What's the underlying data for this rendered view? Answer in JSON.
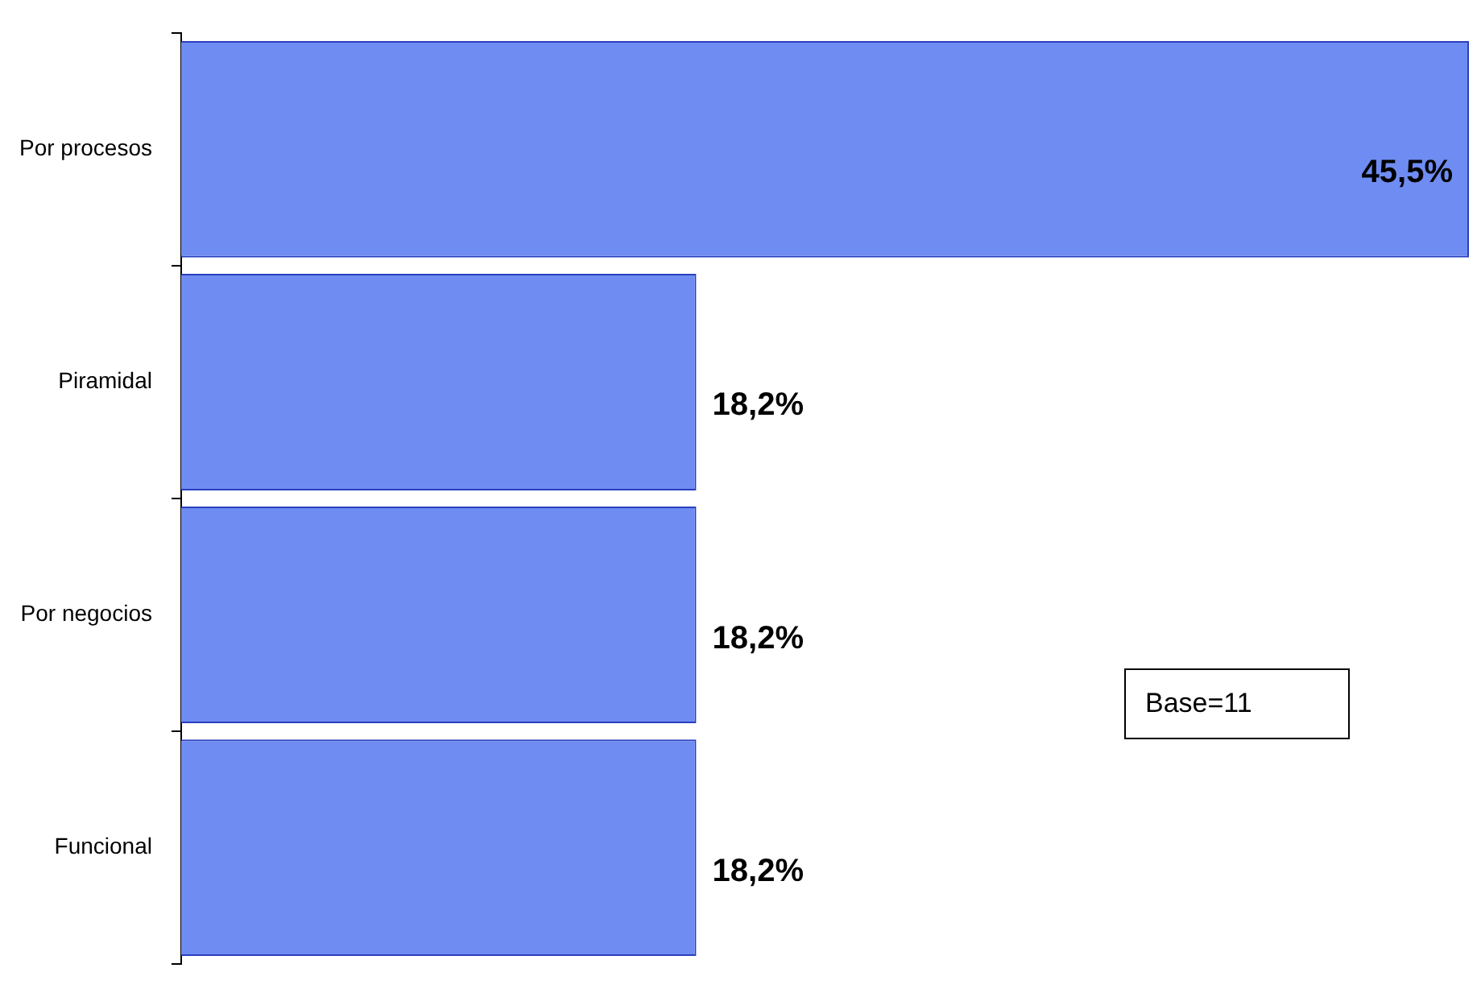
{
  "chart_data": {
    "type": "bar",
    "orientation": "horizontal",
    "categories": [
      "Por procesos",
      "Piramidal",
      "Por negocios",
      "Funcional"
    ],
    "values": [
      45.5,
      18.2,
      18.2,
      18.2
    ],
    "value_labels": [
      "45,5%",
      "18,2%",
      "18,2%",
      "18,2%"
    ],
    "color": "#6f8cf2",
    "tick_labels": "y",
    "grid": false,
    "legend": false,
    "annotations": [
      "Base=11"
    ]
  }
}
